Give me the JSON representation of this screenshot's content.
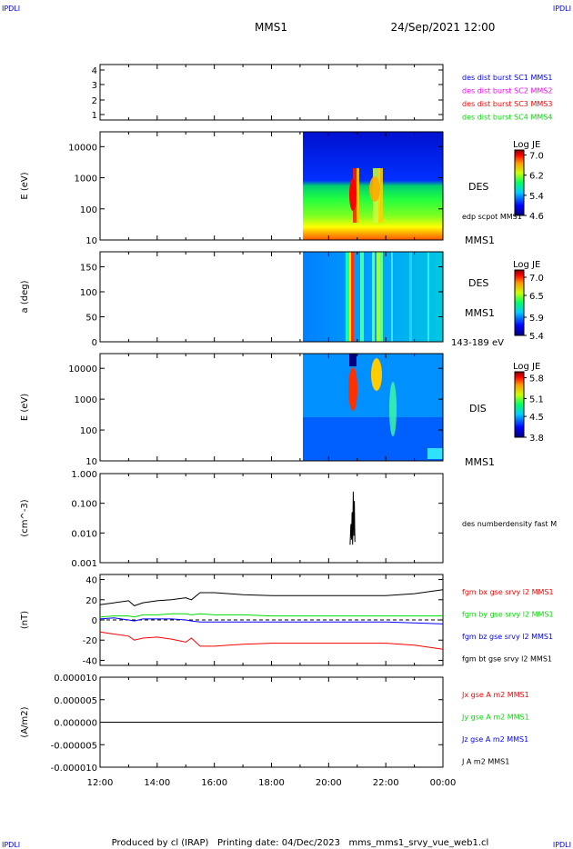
{
  "corner_label": "IPDLI",
  "header": {
    "spacecraft": "MMS1",
    "datetime": "24/Sep/2021 12:00"
  },
  "footer": "Produced by cl (IRAP)   Printing date: 04/Dec/2023   mms_mms1_srvy_vue_web1.cl",
  "colors": {
    "blue": "#0000ff",
    "magenta": "#ff00ff",
    "red": "#ff0000",
    "green": "#00dd00",
    "black": "#000000",
    "frame": "#000000"
  },
  "chart_data": [
    {
      "type": "table",
      "id": "burst",
      "yticks": [
        "4",
        "3",
        "2",
        "1"
      ],
      "legend": [
        {
          "label": "des dist burst SC1 MMS1",
          "color": "#0000ff"
        },
        {
          "label": "des dist burst SC2 MMS2",
          "color": "#ff00ff"
        },
        {
          "label": "des dist burst SC3 MMS3",
          "color": "#ff0000"
        },
        {
          "label": "des dist burst SC4 MMS4",
          "color": "#00dd00"
        }
      ]
    },
    {
      "type": "heatmap",
      "id": "des_energy",
      "ylabel": "E (eV)",
      "yscale": "log",
      "ylim": [
        10,
        30000
      ],
      "yticks": [
        "10000",
        "1000",
        "100",
        "10"
      ],
      "labels": [
        "DES",
        "edp scpot MMS1",
        "MMS1"
      ],
      "colorbar": {
        "title": "Log JE",
        "ticks": [
          "7.0",
          "6.2",
          "5.4",
          "4.6"
        ],
        "range": [
          4.6,
          7.2
        ]
      },
      "data_start_hour": 19.1
    },
    {
      "type": "heatmap",
      "id": "des_pitch",
      "ylabel": "a (deg)",
      "ylim": [
        0,
        180
      ],
      "yticks": [
        "150",
        "100",
        "50",
        "0"
      ],
      "labels": [
        "DES",
        "MMS1",
        "143-189 eV"
      ],
      "colorbar": {
        "title": "Log JE",
        "ticks": [
          "7.0",
          "6.5",
          "5.9",
          "5.4"
        ],
        "range": [
          5.4,
          7.2
        ]
      },
      "data_start_hour": 19.1
    },
    {
      "type": "heatmap",
      "id": "dis_energy",
      "ylabel": "E (eV)",
      "yscale": "log",
      "ylim": [
        10,
        30000
      ],
      "yticks": [
        "10000",
        "1000",
        "100",
        "10"
      ],
      "labels": [
        "DIS",
        "MMS1"
      ],
      "colorbar": {
        "title": "Log JE",
        "ticks": [
          "5.8",
          "5.1",
          "4.5",
          "3.8"
        ],
        "range": [
          3.8,
          6.0
        ]
      },
      "data_start_hour": 19.1
    },
    {
      "type": "line",
      "id": "density",
      "ylabel": "(cm^-3)",
      "yscale": "log",
      "ylim": [
        0.001,
        1.0
      ],
      "yticks": [
        "1.000",
        "0.100",
        "0.010",
        "0.001"
      ],
      "legend": [
        {
          "label": "des numberdensity fast M",
          "color": "#000000"
        }
      ],
      "series": [
        {
          "x": [
            20.75,
            20.78,
            20.8,
            20.82,
            20.84,
            20.86,
            20.88,
            20.9,
            20.92
          ],
          "y": [
            0.004,
            0.02,
            0.006,
            0.05,
            0.004,
            0.25,
            0.008,
            0.12,
            0.005
          ]
        }
      ]
    },
    {
      "type": "line",
      "id": "fgm",
      "ylabel": "(nT)",
      "ylim": [
        -45,
        45
      ],
      "yticks": [
        "40",
        "20",
        "0",
        "-20",
        "-40"
      ],
      "legend": [
        {
          "label": "fgm bx gse srvy l2 MMS1",
          "color": "#ff0000"
        },
        {
          "label": "fgm by gse srvy l2 MMS1",
          "color": "#00dd00"
        },
        {
          "label": "fgm bz gse srvy l2 MMS1",
          "color": "#0000ff"
        },
        {
          "label": "fgm bt gse srvy l2 MMS1",
          "color": "#000000"
        }
      ],
      "x": [
        12,
        12.5,
        13,
        13.2,
        13.5,
        14,
        14.5,
        15,
        15.2,
        15.5,
        16,
        17,
        18,
        19,
        20,
        21,
        22,
        23,
        24
      ],
      "series": [
        {
          "y": [
            -12,
            -14,
            -16,
            -20,
            -18,
            -17,
            -19,
            -22,
            -18,
            -26,
            -26,
            -24,
            -23,
            -23,
            -23,
            -23,
            -23,
            -25,
            -29
          ]
        },
        {
          "y": [
            3,
            4,
            4,
            3,
            5,
            5,
            6,
            6,
            5,
            6,
            5,
            5,
            4,
            4,
            4,
            4,
            4,
            4,
            4
          ]
        },
        {
          "y": [
            1,
            2,
            0,
            -1,
            1,
            1,
            1,
            0,
            -1,
            -2,
            -2,
            -2,
            -2,
            -2,
            -2,
            -2,
            -2,
            -3,
            -4
          ]
        },
        {
          "y": [
            15,
            17,
            19,
            14,
            17,
            19,
            20,
            22,
            20,
            27,
            27,
            25,
            24,
            24,
            24,
            24,
            24,
            26,
            30
          ]
        }
      ]
    },
    {
      "type": "line",
      "id": "current",
      "ylabel": "(A/m2)",
      "ylim": [
        -1e-05,
        1e-05
      ],
      "yticks": [
        "0.000010",
        "0.000005",
        "0.000000",
        "-0.000005",
        "-0.000010"
      ],
      "xticks": [
        "12:00",
        "14:00",
        "16:00",
        "18:00",
        "20:00",
        "22:00",
        "00:00"
      ],
      "legend": [
        {
          "label": "Jx gse A m2 MMS1",
          "color": "#ff0000"
        },
        {
          "label": "Jy gse A m2 MMS1",
          "color": "#00dd00"
        },
        {
          "label": "Jz gse A m2 MMS1",
          "color": "#0000ff"
        },
        {
          "label": "J A m2 MMS1",
          "color": "#000000"
        }
      ]
    }
  ]
}
